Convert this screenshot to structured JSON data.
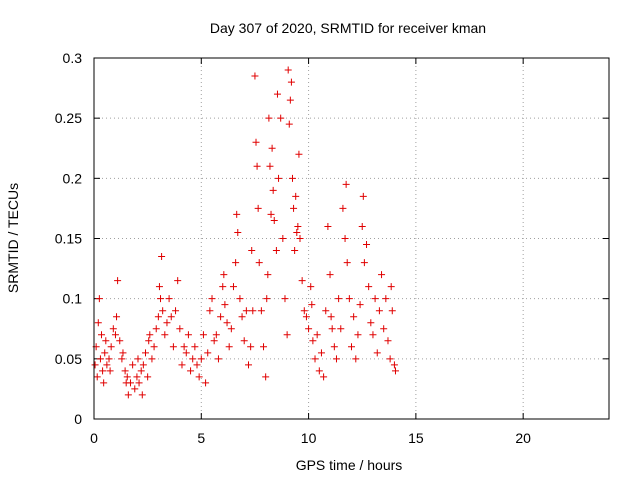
{
  "chart_data": {
    "type": "scatter",
    "title": "Day 307 of 2020, SRMTID for receiver kman",
    "xlabel": "GPS time / hours",
    "ylabel": "SRMTID / TECUs",
    "xlim": [
      0,
      24
    ],
    "ylim": [
      0,
      0.3
    ],
    "xticks": [
      0,
      5,
      10,
      15,
      20
    ],
    "xtick_labels": [
      "0",
      "5",
      "10",
      "15",
      "20"
    ],
    "yticks": [
      0,
      0.05,
      0.1,
      0.15,
      0.2,
      0.25,
      0.3
    ],
    "ytick_labels": [
      "0",
      "0.05",
      "0.1",
      "0.15",
      "0.2",
      "0.25",
      "0.3"
    ],
    "grid": true,
    "marker": "+",
    "color": "#e00000",
    "series": [
      {
        "name": "SRMTID",
        "points": [
          [
            0.05,
            0.045
          ],
          [
            0.1,
            0.06
          ],
          [
            0.15,
            0.035
          ],
          [
            0.2,
            0.08
          ],
          [
            0.25,
            0.1
          ],
          [
            0.3,
            0.05
          ],
          [
            0.35,
            0.07
          ],
          [
            0.4,
            0.04
          ],
          [
            0.45,
            0.03
          ],
          [
            0.5,
            0.055
          ],
          [
            0.55,
            0.065
          ],
          [
            0.6,
            0.045
          ],
          [
            0.7,
            0.05
          ],
          [
            0.75,
            0.04
          ],
          [
            0.8,
            0.06
          ],
          [
            0.9,
            0.075
          ],
          [
            1.0,
            0.07
          ],
          [
            1.05,
            0.085
          ],
          [
            1.1,
            0.115
          ],
          [
            1.2,
            0.065
          ],
          [
            1.3,
            0.05
          ],
          [
            1.35,
            0.055
          ],
          [
            1.45,
            0.04
          ],
          [
            1.5,
            0.03
          ],
          [
            1.55,
            0.035
          ],
          [
            1.6,
            0.02
          ],
          [
            1.7,
            0.03
          ],
          [
            1.8,
            0.045
          ],
          [
            1.9,
            0.025
          ],
          [
            2.0,
            0.035
          ],
          [
            2.05,
            0.05
          ],
          [
            2.1,
            0.03
          ],
          [
            2.2,
            0.04
          ],
          [
            2.25,
            0.02
          ],
          [
            2.3,
            0.045
          ],
          [
            2.4,
            0.055
          ],
          [
            2.5,
            0.035
          ],
          [
            2.55,
            0.065
          ],
          [
            2.6,
            0.07
          ],
          [
            2.7,
            0.05
          ],
          [
            2.8,
            0.06
          ],
          [
            2.9,
            0.075
          ],
          [
            3.0,
            0.085
          ],
          [
            3.05,
            0.11
          ],
          [
            3.1,
            0.1
          ],
          [
            3.15,
            0.135
          ],
          [
            3.2,
            0.09
          ],
          [
            3.3,
            0.07
          ],
          [
            3.4,
            0.08
          ],
          [
            3.5,
            0.1
          ],
          [
            3.6,
            0.085
          ],
          [
            3.7,
            0.06
          ],
          [
            3.8,
            0.09
          ],
          [
            3.9,
            0.115
          ],
          [
            4.0,
            0.075
          ],
          [
            4.1,
            0.045
          ],
          [
            4.2,
            0.06
          ],
          [
            4.3,
            0.055
          ],
          [
            4.4,
            0.07
          ],
          [
            4.5,
            0.04
          ],
          [
            4.6,
            0.05
          ],
          [
            4.7,
            0.06
          ],
          [
            4.8,
            0.045
          ],
          [
            4.9,
            0.035
          ],
          [
            5.0,
            0.05
          ],
          [
            5.1,
            0.07
          ],
          [
            5.2,
            0.03
          ],
          [
            5.3,
            0.055
          ],
          [
            5.4,
            0.09
          ],
          [
            5.5,
            0.1
          ],
          [
            5.6,
            0.065
          ],
          [
            5.7,
            0.07
          ],
          [
            5.8,
            0.05
          ],
          [
            5.9,
            0.085
          ],
          [
            6.0,
            0.11
          ],
          [
            6.05,
            0.12
          ],
          [
            6.1,
            0.095
          ],
          [
            6.2,
            0.08
          ],
          [
            6.3,
            0.06
          ],
          [
            6.4,
            0.075
          ],
          [
            6.5,
            0.11
          ],
          [
            6.6,
            0.13
          ],
          [
            6.65,
            0.17
          ],
          [
            6.7,
            0.155
          ],
          [
            6.8,
            0.1
          ],
          [
            6.9,
            0.085
          ],
          [
            7.0,
            0.065
          ],
          [
            7.1,
            0.09
          ],
          [
            7.2,
            0.045
          ],
          [
            7.3,
            0.06
          ],
          [
            7.35,
            0.14
          ],
          [
            7.4,
            0.09
          ],
          [
            7.5,
            0.285
          ],
          [
            7.55,
            0.23
          ],
          [
            7.6,
            0.21
          ],
          [
            7.65,
            0.175
          ],
          [
            7.7,
            0.13
          ],
          [
            7.8,
            0.09
          ],
          [
            7.9,
            0.06
          ],
          [
            8.0,
            0.035
          ],
          [
            8.05,
            0.1
          ],
          [
            8.1,
            0.12
          ],
          [
            8.15,
            0.25
          ],
          [
            8.2,
            0.21
          ],
          [
            8.25,
            0.17
          ],
          [
            8.3,
            0.225
          ],
          [
            8.35,
            0.19
          ],
          [
            8.4,
            0.165
          ],
          [
            8.5,
            0.14
          ],
          [
            8.55,
            0.27
          ],
          [
            8.6,
            0.2
          ],
          [
            8.7,
            0.25
          ],
          [
            8.8,
            0.15
          ],
          [
            8.9,
            0.1
          ],
          [
            9.0,
            0.07
          ],
          [
            9.05,
            0.29
          ],
          [
            9.1,
            0.245
          ],
          [
            9.15,
            0.265
          ],
          [
            9.2,
            0.28
          ],
          [
            9.25,
            0.2
          ],
          [
            9.3,
            0.175
          ],
          [
            9.35,
            0.14
          ],
          [
            9.4,
            0.185
          ],
          [
            9.45,
            0.155
          ],
          [
            9.5,
            0.16
          ],
          [
            9.55,
            0.22
          ],
          [
            9.6,
            0.15
          ],
          [
            9.7,
            0.115
          ],
          [
            9.8,
            0.09
          ],
          [
            9.9,
            0.085
          ],
          [
            10.0,
            0.075
          ],
          [
            10.1,
            0.11
          ],
          [
            10.15,
            0.095
          ],
          [
            10.2,
            0.065
          ],
          [
            10.3,
            0.05
          ],
          [
            10.4,
            0.07
          ],
          [
            10.5,
            0.04
          ],
          [
            10.6,
            0.055
          ],
          [
            10.7,
            0.035
          ],
          [
            10.8,
            0.09
          ],
          [
            10.9,
            0.16
          ],
          [
            11.0,
            0.12
          ],
          [
            11.05,
            0.085
          ],
          [
            11.1,
            0.075
          ],
          [
            11.2,
            0.06
          ],
          [
            11.3,
            0.05
          ],
          [
            11.4,
            0.1
          ],
          [
            11.5,
            0.075
          ],
          [
            11.6,
            0.175
          ],
          [
            11.7,
            0.15
          ],
          [
            11.75,
            0.195
          ],
          [
            11.8,
            0.13
          ],
          [
            11.9,
            0.1
          ],
          [
            12.0,
            0.06
          ],
          [
            12.1,
            0.085
          ],
          [
            12.2,
            0.05
          ],
          [
            12.3,
            0.07
          ],
          [
            12.4,
            0.095
          ],
          [
            12.5,
            0.16
          ],
          [
            12.55,
            0.185
          ],
          [
            12.6,
            0.13
          ],
          [
            12.7,
            0.145
          ],
          [
            12.8,
            0.11
          ],
          [
            12.9,
            0.08
          ],
          [
            13.0,
            0.07
          ],
          [
            13.1,
            0.1
          ],
          [
            13.2,
            0.055
          ],
          [
            13.3,
            0.09
          ],
          [
            13.4,
            0.12
          ],
          [
            13.5,
            0.075
          ],
          [
            13.6,
            0.1
          ],
          [
            13.7,
            0.065
          ],
          [
            13.8,
            0.05
          ],
          [
            13.85,
            0.11
          ],
          [
            13.9,
            0.09
          ],
          [
            14.0,
            0.045
          ],
          [
            14.05,
            0.04
          ]
        ]
      }
    ]
  }
}
